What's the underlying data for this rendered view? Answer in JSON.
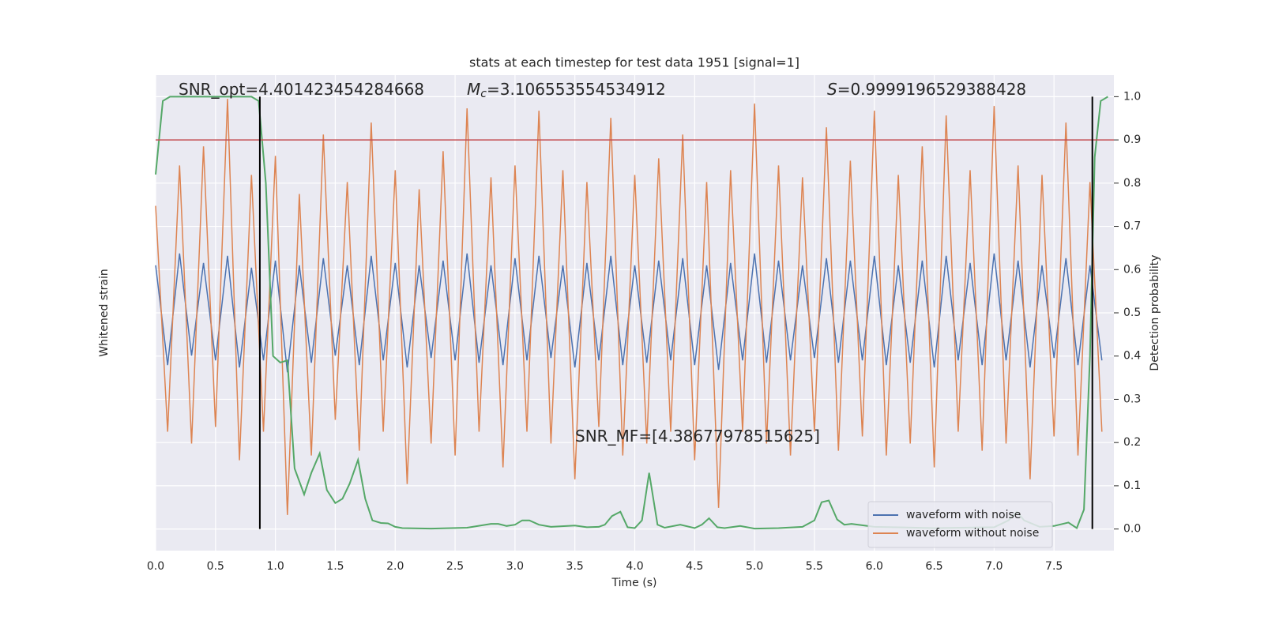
{
  "chart_data": {
    "type": "line",
    "title": "stats at each timestep for test data 1951 [signal=1]",
    "xlabel": "Time (s)",
    "ylabel": "Whitened strain",
    "y2label": "Detection probability",
    "x": [
      0,
      0.1,
      0.2,
      0.3,
      0.4,
      0.5,
      0.6,
      0.7,
      0.8,
      0.9,
      1.0,
      1.1,
      1.2,
      1.3,
      1.4,
      1.5,
      1.6,
      1.7,
      1.8,
      1.9,
      2.0,
      2.1,
      2.2,
      2.3,
      2.4,
      2.5,
      2.6,
      2.7,
      2.8,
      2.9,
      3.0,
      3.1,
      3.2,
      3.3,
      3.4,
      3.5,
      3.6,
      3.7,
      3.8,
      3.9,
      4.0,
      4.1,
      4.2,
      4.3,
      4.4,
      4.5,
      4.6,
      4.7,
      4.8,
      4.9,
      5.0,
      5.1,
      5.2,
      5.3,
      5.4,
      5.5,
      5.6,
      5.7,
      5.8,
      5.9,
      6.0,
      6.1,
      6.2,
      6.3,
      6.4,
      6.5,
      6.6,
      6.7,
      6.8,
      6.9,
      7.0,
      7.1,
      7.2,
      7.3,
      7.4,
      7.5,
      7.6,
      7.7,
      7.8,
      7.9
    ],
    "series": [
      {
        "name": "waveform with noise",
        "color": "#4c72b0",
        "values": [
          0.2,
          -0.22,
          0.25,
          -0.18,
          0.21,
          -0.2,
          0.24,
          -0.23,
          0.19,
          -0.2,
          0.22,
          -0.25,
          0.2,
          -0.21,
          0.23,
          -0.18,
          0.2,
          -0.22,
          0.24,
          -0.2,
          0.21,
          -0.23,
          0.2,
          -0.19,
          0.22,
          -0.2,
          0.25,
          -0.21,
          0.2,
          -0.22,
          0.23,
          -0.2,
          0.24,
          -0.19,
          0.2,
          -0.23,
          0.21,
          -0.2,
          0.24,
          -0.22,
          0.2,
          -0.21,
          0.22,
          -0.2,
          0.23,
          -0.22,
          0.2,
          -0.24,
          0.21,
          -0.2,
          0.25,
          -0.21,
          0.22,
          -0.2,
          0.2,
          -0.19,
          0.23,
          -0.21,
          0.22,
          -0.2,
          0.24,
          -0.22,
          0.2,
          -0.21,
          0.22,
          -0.23,
          0.24,
          -0.2,
          0.21,
          -0.22,
          0.25,
          -0.2,
          0.22,
          -0.23,
          0.2,
          -0.19,
          0.23,
          -0.22,
          0.2,
          -0.2
        ]
      },
      {
        "name": "waveform without noise",
        "color": "#dd8452",
        "values": [
          0.45,
          -0.5,
          0.62,
          -0.55,
          0.7,
          -0.48,
          0.9,
          -0.62,
          0.58,
          -0.5,
          0.66,
          -0.85,
          0.5,
          -0.6,
          0.75,
          -0.45,
          0.55,
          -0.58,
          0.8,
          -0.5,
          0.6,
          -0.72,
          0.52,
          -0.55,
          0.68,
          -0.6,
          0.86,
          -0.5,
          0.57,
          -0.65,
          0.62,
          -0.5,
          0.85,
          -0.55,
          0.6,
          -0.7,
          0.55,
          -0.48,
          0.82,
          -0.6,
          0.58,
          -0.55,
          0.65,
          -0.5,
          0.75,
          -0.62,
          0.55,
          -0.82,
          0.6,
          -0.5,
          0.88,
          -0.55,
          0.62,
          -0.6,
          0.57,
          -0.5,
          0.78,
          -0.58,
          0.64,
          -0.52,
          0.85,
          -0.6,
          0.58,
          -0.55,
          0.7,
          -0.65,
          0.83,
          -0.5,
          0.6,
          -0.58,
          0.87,
          -0.55,
          0.62,
          -0.7,
          0.58,
          -0.52,
          0.8,
          -0.6,
          0.55,
          -0.5
        ]
      },
      {
        "color": "#55a868",
        "axis": "y2",
        "x": [
          0,
          0.06,
          0.12,
          0.8,
          0.86,
          0.92,
          0.98,
          1.04,
          1.1,
          1.16,
          1.24,
          1.3,
          1.37,
          1.43,
          1.5,
          1.56,
          1.62,
          1.69,
          1.75,
          1.81,
          1.88,
          1.94,
          2.0,
          2.06,
          2.3,
          2.6,
          2.8,
          2.86,
          2.93,
          3.0,
          3.06,
          3.12,
          3.2,
          3.3,
          3.5,
          3.6,
          3.7,
          3.75,
          3.81,
          3.88,
          3.94,
          4.0,
          4.06,
          4.12,
          4.19,
          4.25,
          4.38,
          4.5,
          4.56,
          4.62,
          4.69,
          4.75,
          4.88,
          5.0,
          5.2,
          5.4,
          5.5,
          5.56,
          5.62,
          5.69,
          5.75,
          5.81,
          6.0,
          6.5,
          7.0,
          7.12,
          7.19,
          7.25,
          7.38,
          7.5,
          7.62,
          7.69,
          7.75,
          7.8,
          7.84,
          7.89,
          7.95
        ],
        "values": [
          0.82,
          0.99,
          1.0,
          1.0,
          0.99,
          0.8,
          0.4,
          0.385,
          0.39,
          0.14,
          0.08,
          0.13,
          0.175,
          0.09,
          0.06,
          0.07,
          0.105,
          0.16,
          0.07,
          0.02,
          0.014,
          0.013,
          0.005,
          0.002,
          0.001,
          0.003,
          0.012,
          0.012,
          0.007,
          0.01,
          0.02,
          0.02,
          0.01,
          0.005,
          0.008,
          0.004,
          0.005,
          0.01,
          0.03,
          0.04,
          0.004,
          0.002,
          0.02,
          0.13,
          0.01,
          0.003,
          0.01,
          0.002,
          0.01,
          0.025,
          0.004,
          0.002,
          0.007,
          0.001,
          0.002,
          0.005,
          0.02,
          0.062,
          0.066,
          0.022,
          0.01,
          0.012,
          0.005,
          0.002,
          0.004,
          0.02,
          0.04,
          0.02,
          0.005,
          0.007,
          0.015,
          0.002,
          0.045,
          0.4,
          0.86,
          0.99,
          1.0
        ]
      }
    ],
    "hline": {
      "value": 0.9,
      "color": "#c44e52",
      "axis": "y2"
    },
    "vlines": [
      0.87,
      7.82
    ],
    "xlim": [
      0,
      8
    ],
    "ylim": [
      -1,
      1
    ],
    "y2lim": [
      -0.05,
      1.05
    ],
    "xticks": [
      {
        "value": 0,
        "label": "0.0"
      },
      {
        "value": 0.5,
        "label": "0.5"
      },
      {
        "value": 1,
        "label": "1.0"
      },
      {
        "value": 1.5,
        "label": "1.5"
      },
      {
        "value": 2,
        "label": "2.0"
      },
      {
        "value": 2.5,
        "label": "2.5"
      },
      {
        "value": 3,
        "label": "3.0"
      },
      {
        "value": 3.5,
        "label": "3.5"
      },
      {
        "value": 4,
        "label": "4.0"
      },
      {
        "value": 4.5,
        "label": "4.5"
      },
      {
        "value": 5,
        "label": "5.0"
      },
      {
        "value": 5.5,
        "label": "5.5"
      },
      {
        "value": 6,
        "label": "6.0"
      },
      {
        "value": 6.5,
        "label": "6.5"
      },
      {
        "value": 7,
        "label": "7.0"
      },
      {
        "value": 7.5,
        "label": "7.5"
      }
    ],
    "y2ticks": [
      {
        "value": 0,
        "label": "0.0"
      },
      0.1,
      0.2,
      0.3,
      0.4,
      0.5,
      0.6,
      0.7,
      0.8,
      0.9,
      {
        "value": 1,
        "label": "1.0"
      }
    ],
    "grid": true,
    "legend": "lower right",
    "annotations": [
      {
        "text": "SNR_opt=4.401423454284668"
      },
      {
        "symbol": "M",
        "sub": "c",
        "text": "=3.106553554534912"
      },
      {
        "symbol": "S",
        "text": "=0.9999196529388428"
      },
      {
        "text": "SNR_MF=[4.38677978515625]"
      }
    ]
  }
}
